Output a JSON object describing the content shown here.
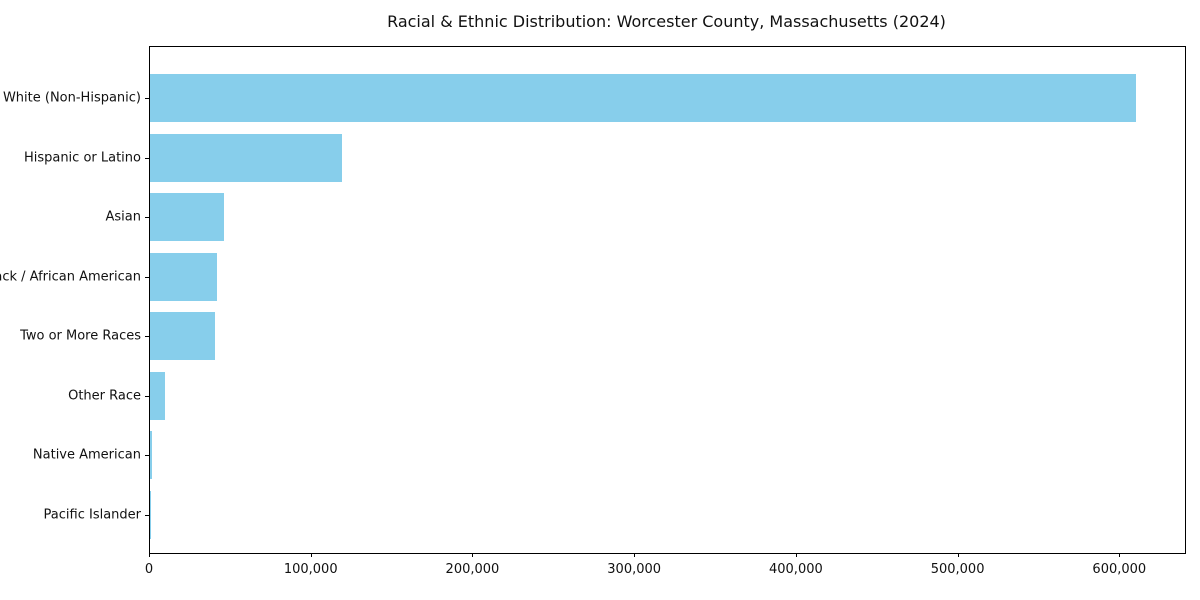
{
  "chart_data": {
    "type": "bar",
    "orientation": "horizontal",
    "title": "Racial & Ethnic Distribution: Worcester County, Massachusetts (2024)",
    "categories": [
      "White (Non-Hispanic)",
      "Hispanic or Latino",
      "Asian",
      "Black / African American",
      "Two or More Races",
      "Other Race",
      "Native American",
      "Pacific Islander"
    ],
    "values": [
      610000,
      118500,
      46000,
      41500,
      40000,
      9500,
      1200,
      300
    ],
    "xlabel": "",
    "ylabel": "",
    "xlim": [
      0,
      640000
    ],
    "xticks": [
      0,
      100000,
      200000,
      300000,
      400000,
      500000,
      600000
    ],
    "xtick_labels": [
      "0",
      "100,000",
      "200,000",
      "300,000",
      "400,000",
      "500,000",
      "600,000"
    ],
    "bar_color": "#87ceeb",
    "grid": false,
    "legend": false,
    "background_color": "#ffffff",
    "spine_color": "#000000"
  }
}
